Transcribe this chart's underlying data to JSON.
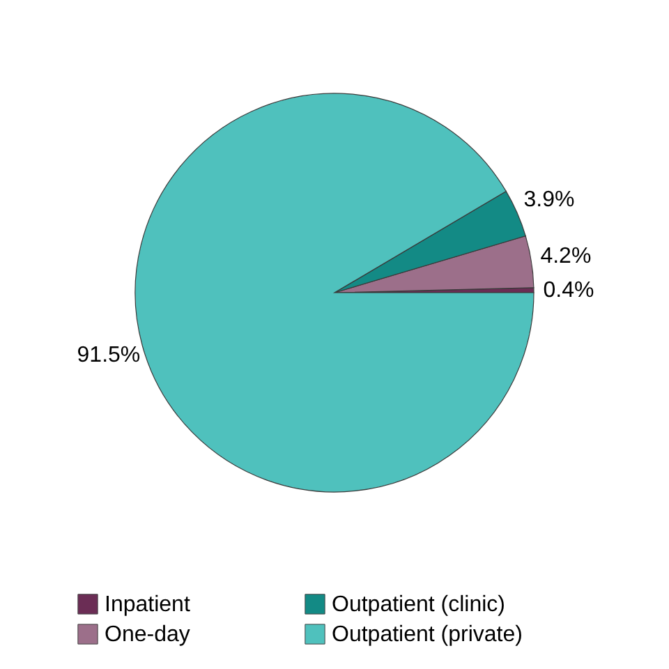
{
  "chart_data": {
    "type": "pie",
    "categories": [
      "Inpatient",
      "One-day",
      "Outpatient (clinic)",
      "Outpatient (private)"
    ],
    "values": [
      0.4,
      4.2,
      3.9,
      91.5
    ],
    "value_labels": [
      "0.4%",
      "4.2%",
      "3.9%",
      "91.5%"
    ],
    "colors": [
      "#6b2d55",
      "#9c6f8a",
      "#138a85",
      "#4fc1bd"
    ],
    "legend": "bottom"
  }
}
